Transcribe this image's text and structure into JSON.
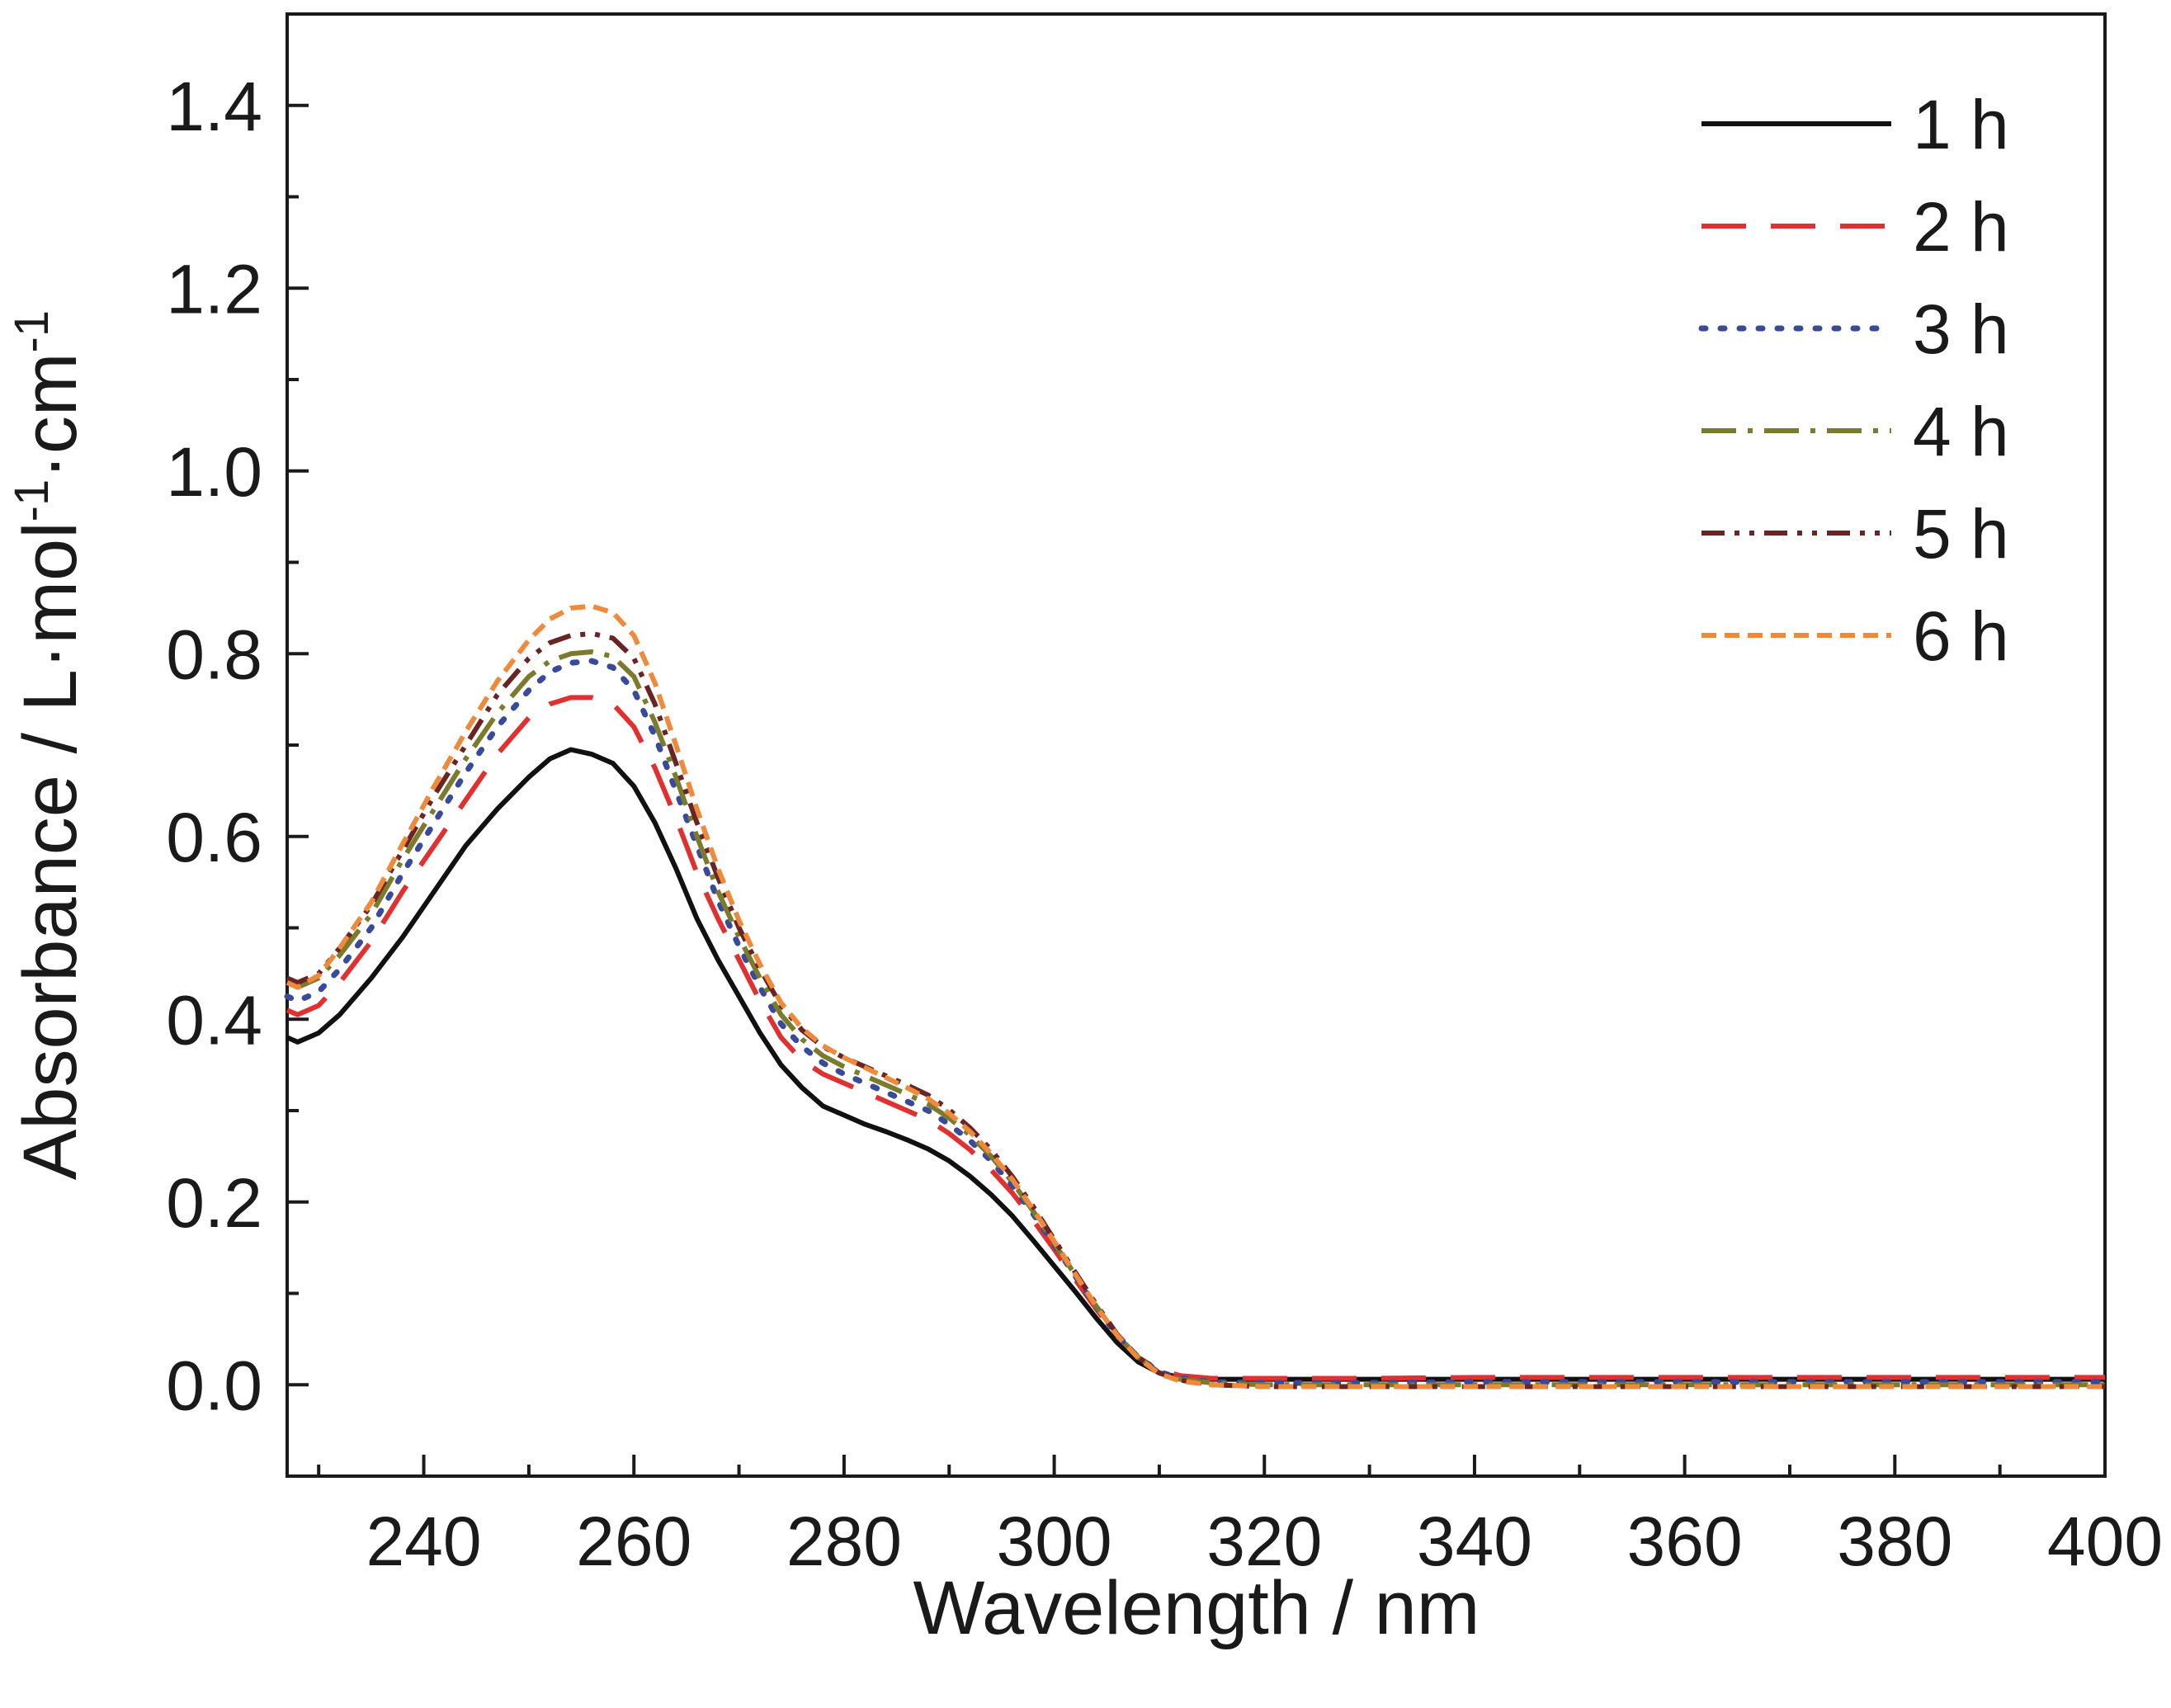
{
  "chart_data": {
    "type": "line",
    "title": "",
    "xlabel": "Wavelength / nm",
    "ylabel_parts": {
      "base": "Absorbance / L·mol",
      "sup1": "-1",
      "mid": "·cm",
      "sup2": "-1"
    },
    "xlim": [
      227,
      400
    ],
    "ylim": [
      -0.1,
      1.5
    ],
    "xticks": [
      240,
      260,
      280,
      300,
      320,
      340,
      360,
      380,
      400
    ],
    "xtick_labels": [
      "240",
      "260",
      "280",
      "300",
      "320",
      "340",
      "360",
      "380",
      "400"
    ],
    "yticks": [
      0.0,
      0.2,
      0.4,
      0.6,
      0.8,
      1.0,
      1.2,
      1.4
    ],
    "ytick_labels": [
      "0.0",
      "0.2",
      "0.4",
      "0.6",
      "0.8",
      "1.0",
      "1.2",
      "1.4"
    ],
    "grid": false,
    "legend_position": "top-right",
    "x": [
      227,
      228,
      230,
      232,
      235,
      238,
      241,
      244,
      247,
      250,
      252,
      254,
      256,
      258,
      260,
      262,
      264,
      266,
      268,
      270,
      272,
      274,
      276,
      278,
      280,
      282,
      284,
      286,
      288,
      290,
      292,
      294,
      296,
      298,
      300,
      302,
      304,
      306,
      308,
      310,
      312,
      315,
      320,
      330,
      340,
      360,
      380,
      400
    ],
    "series": [
      {
        "name": "1 h",
        "color": "#111111",
        "dash": "",
        "values": [
          0.38,
          0.375,
          0.385,
          0.405,
          0.445,
          0.49,
          0.54,
          0.59,
          0.63,
          0.665,
          0.685,
          0.695,
          0.69,
          0.68,
          0.655,
          0.615,
          0.565,
          0.51,
          0.465,
          0.425,
          0.385,
          0.35,
          0.325,
          0.305,
          0.295,
          0.285,
          0.277,
          0.268,
          0.258,
          0.245,
          0.228,
          0.208,
          0.185,
          0.158,
          0.13,
          0.102,
          0.073,
          0.046,
          0.025,
          0.013,
          0.008,
          0.006,
          0.006,
          0.006,
          0.006,
          0.006,
          0.006,
          0.006
        ]
      },
      {
        "name": "2 h",
        "color": "#e03030",
        "dash": "54,30",
        "values": [
          0.41,
          0.405,
          0.415,
          0.44,
          0.485,
          0.54,
          0.59,
          0.64,
          0.69,
          0.73,
          0.745,
          0.752,
          0.752,
          0.745,
          0.72,
          0.675,
          0.62,
          0.56,
          0.51,
          0.465,
          0.42,
          0.38,
          0.355,
          0.34,
          0.33,
          0.32,
          0.31,
          0.3,
          0.29,
          0.275,
          0.257,
          0.235,
          0.21,
          0.18,
          0.148,
          0.115,
          0.083,
          0.053,
          0.03,
          0.016,
          0.01,
          0.007,
          0.007,
          0.007,
          0.008,
          0.008,
          0.008,
          0.008
        ]
      },
      {
        "name": "3 h",
        "color": "#3a4a9a",
        "dash": "5,18",
        "values": [
          0.425,
          0.42,
          0.43,
          0.455,
          0.5,
          0.56,
          0.615,
          0.67,
          0.72,
          0.76,
          0.78,
          0.79,
          0.792,
          0.785,
          0.76,
          0.71,
          0.65,
          0.59,
          0.53,
          0.48,
          0.435,
          0.395,
          0.37,
          0.352,
          0.34,
          0.33,
          0.32,
          0.31,
          0.3,
          0.285,
          0.267,
          0.245,
          0.218,
          0.187,
          0.153,
          0.119,
          0.085,
          0.054,
          0.03,
          0.014,
          0.007,
          0.003,
          0.002,
          0.002,
          0.003,
          0.003,
          0.003,
          0.003
        ]
      },
      {
        "name": "4 h",
        "color": "#7b7b2e",
        "dash": "42,14,6,14",
        "values": [
          0.44,
          0.435,
          0.445,
          0.47,
          0.515,
          0.575,
          0.63,
          0.685,
          0.735,
          0.775,
          0.792,
          0.8,
          0.802,
          0.797,
          0.775,
          0.725,
          0.665,
          0.6,
          0.54,
          0.49,
          0.445,
          0.405,
          0.378,
          0.36,
          0.348,
          0.338,
          0.328,
          0.318,
          0.307,
          0.292,
          0.273,
          0.25,
          0.222,
          0.19,
          0.155,
          0.12,
          0.086,
          0.054,
          0.03,
          0.013,
          0.006,
          0.002,
          0.0,
          0.0,
          0.0,
          0.0,
          0.0,
          0.0
        ]
      },
      {
        "name": "5 h",
        "color": "#6a2424",
        "dash": "28,12,6,12,6,12",
        "values": [
          0.445,
          0.44,
          0.45,
          0.478,
          0.525,
          0.585,
          0.645,
          0.7,
          0.755,
          0.795,
          0.812,
          0.82,
          0.822,
          0.817,
          0.795,
          0.745,
          0.68,
          0.615,
          0.555,
          0.5,
          0.455,
          0.415,
          0.388,
          0.37,
          0.358,
          0.348,
          0.338,
          0.328,
          0.317,
          0.301,
          0.281,
          0.257,
          0.228,
          0.195,
          0.159,
          0.123,
          0.088,
          0.055,
          0.03,
          0.013,
          0.005,
          0.0,
          -0.002,
          -0.002,
          -0.002,
          -0.002,
          -0.002,
          -0.002
        ]
      },
      {
        "name": "6 h",
        "color": "#ef8a3c",
        "dash": "18,10",
        "values": [
          0.44,
          0.435,
          0.448,
          0.478,
          0.528,
          0.592,
          0.655,
          0.715,
          0.77,
          0.815,
          0.838,
          0.85,
          0.852,
          0.845,
          0.82,
          0.768,
          0.7,
          0.63,
          0.565,
          0.508,
          0.46,
          0.418,
          0.39,
          0.371,
          0.358,
          0.347,
          0.336,
          0.325,
          0.313,
          0.297,
          0.277,
          0.253,
          0.225,
          0.192,
          0.157,
          0.121,
          0.086,
          0.054,
          0.029,
          0.012,
          0.004,
          0.0,
          -0.002,
          -0.002,
          -0.002,
          -0.002,
          -0.002,
          -0.002
        ]
      }
    ]
  }
}
